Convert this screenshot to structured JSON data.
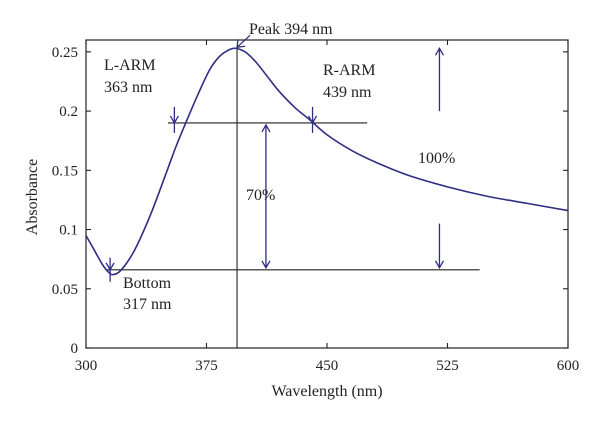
{
  "chart_data": {
    "type": "line",
    "xlabel": "Wavelength (nm)",
    "ylabel": "Absorbance",
    "xlim": [
      300,
      600
    ],
    "ylim": [
      0,
      0.26
    ],
    "x_ticks": [
      300,
      375,
      450,
      525,
      600
    ],
    "y_ticks": [
      0,
      0.05,
      0.1,
      0.15,
      0.2,
      0.25
    ],
    "y_tick_labels": [
      "0",
      "0.05",
      "0.1",
      "0.15",
      "0.2",
      "0.25"
    ],
    "grid": false,
    "series": [
      {
        "color": "#2e2d84",
        "points": [
          [
            300,
            0.095
          ],
          [
            305,
            0.083
          ],
          [
            310,
            0.071
          ],
          [
            314,
            0.064
          ],
          [
            317,
            0.062
          ],
          [
            322,
            0.066
          ],
          [
            330,
            0.082
          ],
          [
            340,
            0.112
          ],
          [
            350,
            0.148
          ],
          [
            356,
            0.17
          ],
          [
            363,
            0.193
          ],
          [
            370,
            0.215
          ],
          [
            377,
            0.235
          ],
          [
            383,
            0.246
          ],
          [
            388,
            0.251
          ],
          [
            392,
            0.253
          ],
          [
            396,
            0.252
          ],
          [
            400,
            0.249
          ],
          [
            406,
            0.241
          ],
          [
            413,
            0.229
          ],
          [
            420,
            0.217
          ],
          [
            430,
            0.203
          ],
          [
            439,
            0.193
          ],
          [
            450,
            0.18
          ],
          [
            465,
            0.167
          ],
          [
            480,
            0.157
          ],
          [
            500,
            0.146
          ],
          [
            525,
            0.136
          ],
          [
            550,
            0.128
          ],
          [
            575,
            0.122
          ],
          [
            600,
            0.116
          ]
        ]
      }
    ],
    "reference_lines": {
      "peak_x": 394,
      "arm_y": 0.19,
      "arm_x_range": [
        351,
        475
      ],
      "bottom_y": 0.066,
      "bottom_x_range": [
        313,
        545
      ]
    },
    "annotations": {
      "peak": "Peak 394 nm",
      "l_arm_line1": "L-ARM",
      "l_arm_line2": "363 nm",
      "r_arm_line1": "R-ARM",
      "r_arm_line2": "439 nm",
      "bottom_line1": "Bottom",
      "bottom_line2": "317 nm",
      "pct_70": "70%",
      "pct_100": "100%"
    },
    "colors": {
      "curve": "#2e2d84",
      "arrows": "#2e2d84",
      "reference": "#222222"
    }
  }
}
